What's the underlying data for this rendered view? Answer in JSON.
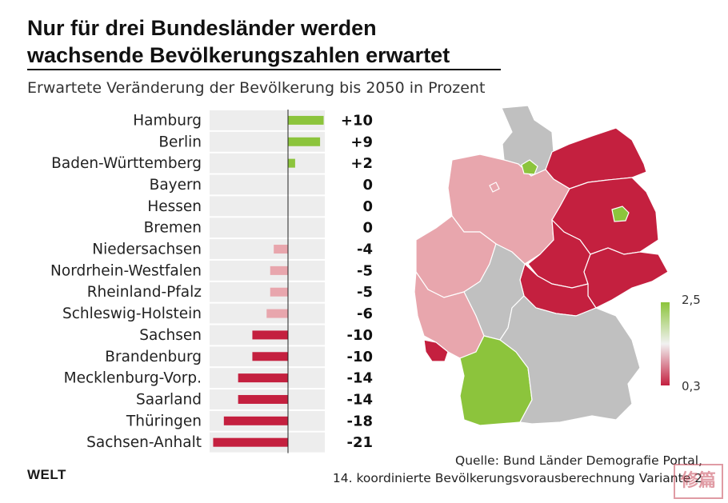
{
  "title_line1": "Nur für drei Bundesländer werden",
  "title_line2": "wachsende Bevölkerungszahlen erwartet",
  "subtitle": "Erwartete Veränderung der Bevölkerung bis 2050 in Prozent",
  "colors": {
    "positive": "#8cc43c",
    "negative_strong": "#c4203f",
    "negative_light": "#e8a6ad",
    "neutral_map": "#c0c0c0",
    "row_bg": "#ededed"
  },
  "chart_data": {
    "type": "bar",
    "orientation": "horizontal",
    "categories": [
      "Hamburg",
      "Berlin",
      "Baden-Württemberg",
      "Bayern",
      "Hessen",
      "Bremen",
      "Niedersachsen",
      "Nordrhein-Westfalen",
      "Rheinland-Pfalz",
      "Schleswig-Holstein",
      "Sachsen",
      "Brandenburg",
      "Mecklenburg-Vorp.",
      "Saarland",
      "Thüringen",
      "Sachsen-Anhalt"
    ],
    "values": [
      10,
      9,
      2,
      0,
      0,
      0,
      -4,
      -5,
      -5,
      -6,
      -10,
      -10,
      -14,
      -14,
      -18,
      -21
    ],
    "value_labels": [
      "+10",
      "+9",
      "+2",
      "0",
      "0",
      "0",
      "-4",
      "-5",
      "-5",
      "-6",
      "-10",
      "-10",
      "-14",
      "-14",
      "-18",
      "-21"
    ],
    "xlim": [
      -22,
      11
    ]
  },
  "map_legend": {
    "max_label": "2,5",
    "min_label": "0,3"
  },
  "source_line1": "Quelle: Bund Länder Demografie Portal,",
  "source_line2": "14. koordinierte Bevölkerungsvorausberechnung Variante 2",
  "logo": "WELT",
  "stamp_text": "修篇"
}
